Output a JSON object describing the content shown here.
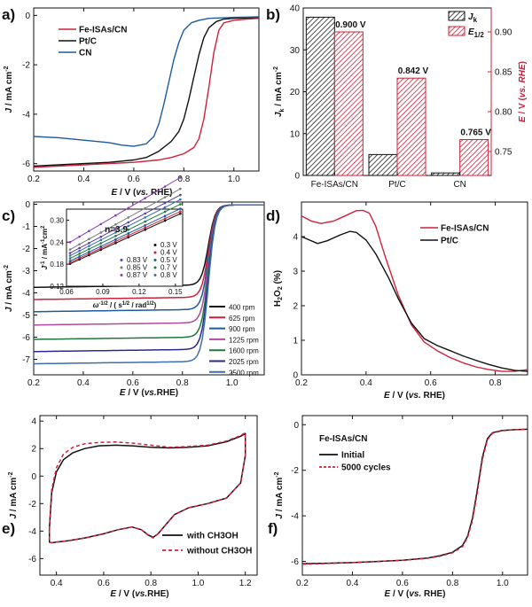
{
  "colors": {
    "red": "#d0203a",
    "blue": "#1f5a9b",
    "black": "#111111"
  },
  "chart_data": [
    {
      "panel": "a)",
      "type": "line",
      "xlabel": "E / V (vs. RHE)",
      "ylabel": "J / mA cm-2",
      "xlim": [
        0.2,
        1.1
      ],
      "ylim": [
        -6.3,
        0.3
      ],
      "xticks": [
        0.2,
        0.4,
        0.6,
        0.8,
        1.0
      ],
      "yticks": [
        0,
        -2,
        -4,
        -6
      ],
      "legend_position": "top-left",
      "series": [
        {
          "name": "Fe-ISAs/CN",
          "color": "#d0203a",
          "legend": true,
          "x": [
            0.2,
            0.3,
            0.4,
            0.5,
            0.6,
            0.7,
            0.75,
            0.8,
            0.84,
            0.86,
            0.88,
            0.9,
            0.92,
            0.94,
            0.96,
            1.0,
            1.05,
            1.1
          ],
          "y": [
            -6.15,
            -6.1,
            -6.05,
            -6.0,
            -5.95,
            -5.85,
            -5.75,
            -5.6,
            -5.35,
            -5.0,
            -4.2,
            -2.9,
            -1.5,
            -0.6,
            -0.3,
            -0.2,
            -0.15,
            -0.12
          ]
        },
        {
          "name": "Pt/C",
          "color": "#111111",
          "legend": true,
          "x": [
            0.2,
            0.3,
            0.4,
            0.5,
            0.6,
            0.65,
            0.7,
            0.75,
            0.78,
            0.8,
            0.82,
            0.84,
            0.86,
            0.88,
            0.9,
            0.93,
            0.96,
            1.0,
            1.05,
            1.1
          ],
          "y": [
            -6.1,
            -6.05,
            -6.0,
            -5.95,
            -5.85,
            -5.75,
            -5.5,
            -5.1,
            -4.7,
            -4.2,
            -3.4,
            -2.5,
            -1.6,
            -0.9,
            -0.5,
            -0.25,
            -0.15,
            -0.12,
            -0.1,
            -0.08
          ]
        },
        {
          "name": "CN",
          "color": "#1f5a9b",
          "legend": true,
          "x": [
            0.2,
            0.3,
            0.4,
            0.5,
            0.55,
            0.6,
            0.65,
            0.68,
            0.7,
            0.72,
            0.74,
            0.76,
            0.78,
            0.8,
            0.83,
            0.86,
            0.9,
            0.95,
            1.0,
            1.05,
            1.1
          ],
          "y": [
            -4.9,
            -4.95,
            -5.05,
            -5.15,
            -5.25,
            -5.3,
            -5.2,
            -4.9,
            -4.4,
            -3.6,
            -2.7,
            -1.8,
            -1.1,
            -0.6,
            -0.3,
            -0.2,
            -0.12,
            -0.1,
            -0.08,
            -0.07,
            -0.06
          ]
        }
      ]
    },
    {
      "panel": "b)",
      "type": "bar",
      "categories": [
        "Fe-ISAs/CN",
        "Pt/C",
        "CN"
      ],
      "ylabel": "Jk / mA cm-2",
      "y2label": "E / V (vs. RHE)",
      "ylim": [
        0,
        40
      ],
      "yticks": [
        0,
        10,
        20,
        30,
        40
      ],
      "y2lim": [
        0.72,
        0.93
      ],
      "y2ticks": [
        0.75,
        0.8,
        0.85,
        0.9
      ],
      "legend_position": "top-right",
      "series": [
        {
          "name": "Jk",
          "axis": "left",
          "color": "#111111",
          "values": [
            37.8,
            5.0,
            0.6
          ]
        },
        {
          "name": "E1/2",
          "axis": "right",
          "color": "#d0203a",
          "values": [
            0.9,
            0.842,
            0.765
          ],
          "labels": [
            "0.900 V",
            "0.842 V",
            "0.765 V"
          ]
        }
      ]
    },
    {
      "panel": "c)",
      "type": "line",
      "xlabel": "E / V (vs.RHE)",
      "ylabel": "J / mA cm-2",
      "xlim": [
        0.2,
        1.13
      ],
      "ylim": [
        -7.7,
        0.1
      ],
      "xticks": [
        0.2,
        0.4,
        0.6,
        0.8,
        1.0
      ],
      "yticks": [
        0,
        -1,
        -2,
        -3,
        -4,
        -5,
        -6,
        -7
      ],
      "legend_position": "bottom-right",
      "series": [
        {
          "name": "400 rpm",
          "color": "#111111",
          "plateau": -3.75
        },
        {
          "name": "625 rpm",
          "color": "#d0203a",
          "plateau": -4.3
        },
        {
          "name": "900 rpm",
          "color": "#1f5a9b",
          "plateau": -4.85
        },
        {
          "name": "1225 rpm",
          "color": "#b04a9c",
          "plateau": -5.45
        },
        {
          "name": "1600 rpm",
          "color": "#1e7a3a",
          "plateau": -6.1
        },
        {
          "name": "2025 rpm",
          "color": "#2a2a8a",
          "plateau": -6.65
        },
        {
          "name": "2500 rpm",
          "color": "#3c6fb0",
          "plateau": -7.2
        }
      ],
      "inset": {
        "type": "scatter",
        "annotation": "n=3.9",
        "xlabel": "ω-1/2 / (s1/2 / rad1/2)",
        "ylabel": "J-1 / mA-1 cm2",
        "xlim": [
          0.06,
          0.156
        ],
        "ylim": [
          0.12,
          0.33
        ],
        "xticks": [
          "0.06",
          "0.09",
          "0.12",
          "0.15"
        ],
        "yticks": [
          "0.12",
          "0.18",
          "0.24",
          "0.30"
        ],
        "x": [
          0.063,
          0.0707,
          0.0786,
          0.0884,
          0.1006,
          0.1111,
          0.125,
          0.1414,
          0.154
        ],
        "series": [
          {
            "name": "0.3 V",
            "color": "#111111",
            "b": 0.0868,
            "k": 1.497
          },
          {
            "name": "0.4 V",
            "color": "#d0203a",
            "b": 0.0886,
            "k": 1.526
          },
          {
            "name": "0.5 V",
            "color": "#1f5a9b",
            "b": 0.0905,
            "k": 1.562
          },
          {
            "name": "0.7 V",
            "color": "#1e7a3a",
            "b": 0.0939,
            "k": 1.619
          },
          {
            "name": "0.8 V",
            "color": "#3c6fb0",
            "b": 0.0976,
            "k": 1.678
          },
          {
            "name": "0.83 V",
            "color": "#5a3ea0",
            "b": 0.1011,
            "k": 1.736
          },
          {
            "name": "0.85 V",
            "color": "#7a7a7a",
            "b": 0.1059,
            "k": 1.813
          },
          {
            "name": "0.87 V",
            "color": "#8a3ab0",
            "b": 0.1185,
            "k": 1.931
          }
        ]
      }
    },
    {
      "panel": "d)",
      "type": "line",
      "xlabel": "E / V (vs. RHE)",
      "ylabel": "H2O2 (%)",
      "xlim": [
        0.2,
        0.9
      ],
      "ylim": [
        0,
        5.0
      ],
      "xticks": [
        0.2,
        0.4,
        0.6,
        0.8
      ],
      "yticks": [
        0,
        1,
        2,
        3,
        4
      ],
      "legend_position": "top-right",
      "series": [
        {
          "name": "Fe-ISAs/CN",
          "color": "#d0203a",
          "x": [
            0.2,
            0.23,
            0.26,
            0.3,
            0.34,
            0.37,
            0.39,
            0.41,
            0.43,
            0.46,
            0.5,
            0.54,
            0.58,
            0.62,
            0.66,
            0.7,
            0.74,
            0.78,
            0.82,
            0.86,
            0.9
          ],
          "y": [
            4.6,
            4.45,
            4.38,
            4.45,
            4.62,
            4.75,
            4.76,
            4.68,
            4.3,
            3.4,
            2.3,
            1.45,
            0.95,
            0.7,
            0.5,
            0.35,
            0.23,
            0.15,
            0.1,
            0.1,
            0.15
          ]
        },
        {
          "name": "Pt/C",
          "color": "#111111",
          "x": [
            0.2,
            0.22,
            0.25,
            0.28,
            0.32,
            0.35,
            0.37,
            0.4,
            0.43,
            0.47,
            0.5,
            0.54,
            0.58,
            0.62,
            0.66,
            0.7,
            0.74,
            0.78,
            0.82,
            0.86,
            0.9
          ],
          "y": [
            4.0,
            3.92,
            3.8,
            3.88,
            4.05,
            4.15,
            4.12,
            3.9,
            3.5,
            2.8,
            2.2,
            1.5,
            1.05,
            0.85,
            0.7,
            0.55,
            0.42,
            0.3,
            0.2,
            0.13,
            0.1
          ]
        }
      ]
    },
    {
      "panel": "e)",
      "type": "line",
      "xlabel": "E / V (vs.RHE)",
      "ylabel": "J / mA cm-2",
      "xlim": [
        0.33,
        1.25
      ],
      "ylim": [
        -7.2,
        4.4
      ],
      "xticks": [
        0.4,
        0.6,
        0.8,
        1.0,
        1.2
      ],
      "yticks": [
        4,
        2,
        0,
        -2,
        -4,
        -6
      ],
      "legend_position": "bottom-right",
      "series": [
        {
          "name": "with CH3OH",
          "color": "#111111",
          "dash": false,
          "x": [
            0.37,
            0.38,
            0.4,
            0.43,
            0.47,
            0.52,
            0.58,
            0.65,
            0.72,
            0.8,
            0.88,
            0.96,
            1.04,
            1.12,
            1.18,
            1.2,
            1.2,
            1.18,
            1.12,
            1.04,
            0.96,
            0.9,
            0.86,
            0.83,
            0.81,
            0.79,
            0.76,
            0.72,
            0.66,
            0.6,
            0.52,
            0.45,
            0.4,
            0.38,
            0.37,
            0.37
          ],
          "y": [
            -3.8,
            -1.2,
            0.3,
            1.2,
            1.7,
            2.0,
            2.2,
            2.25,
            2.2,
            2.1,
            2.05,
            2.1,
            2.2,
            2.5,
            2.9,
            3.1,
            1.5,
            -0.5,
            -1.6,
            -2.0,
            -2.3,
            -2.8,
            -3.6,
            -4.2,
            -4.45,
            -4.3,
            -3.9,
            -3.7,
            -3.9,
            -4.2,
            -4.5,
            -4.7,
            -4.8,
            -4.85,
            -4.8,
            -3.8
          ]
        },
        {
          "name": "without CH3OH",
          "color": "#d0203a",
          "dash": true,
          "x": [
            0.37,
            0.38,
            0.4,
            0.43,
            0.47,
            0.52,
            0.58,
            0.65,
            0.72,
            0.8,
            0.88,
            0.96,
            1.04,
            1.12,
            1.18,
            1.2,
            1.2,
            1.18,
            1.12,
            1.04,
            0.96,
            0.9,
            0.86,
            0.83,
            0.81,
            0.79,
            0.76,
            0.72,
            0.66,
            0.6,
            0.52,
            0.45,
            0.4,
            0.38,
            0.37,
            0.37
          ],
          "y": [
            -3.9,
            -1.0,
            0.6,
            1.6,
            2.1,
            2.35,
            2.45,
            2.48,
            2.4,
            2.25,
            2.1,
            2.15,
            2.25,
            2.55,
            2.95,
            3.15,
            1.5,
            -0.5,
            -1.6,
            -2.0,
            -2.3,
            -2.8,
            -3.6,
            -4.2,
            -4.5,
            -4.3,
            -3.9,
            -3.7,
            -3.9,
            -4.2,
            -4.5,
            -4.7,
            -4.8,
            -4.85,
            -4.8,
            -3.9
          ]
        }
      ]
    },
    {
      "panel": "f)",
      "type": "line",
      "title": "Fe-ISAs/CN",
      "xlabel": "E / V (vs. RHE)",
      "ylabel": "J / mA cm-2",
      "xlim": [
        0.2,
        1.1
      ],
      "ylim": [
        -6.6,
        0.4
      ],
      "xticks": [
        0.2,
        0.4,
        0.6,
        0.8,
        1.0
      ],
      "yticks": [
        0,
        -2,
        -4,
        -6
      ],
      "legend_position": "top-left",
      "series": [
        {
          "name": "Initial",
          "color": "#111111",
          "dash": false,
          "x": [
            0.2,
            0.3,
            0.4,
            0.5,
            0.6,
            0.7,
            0.75,
            0.8,
            0.84,
            0.86,
            0.88,
            0.9,
            0.92,
            0.94,
            0.96,
            1.0,
            1.05,
            1.1
          ],
          "y": [
            -6.1,
            -6.08,
            -6.05,
            -6.0,
            -5.95,
            -5.85,
            -5.75,
            -5.6,
            -5.3,
            -4.9,
            -4.1,
            -2.8,
            -1.4,
            -0.6,
            -0.35,
            -0.25,
            -0.22,
            -0.2
          ]
        },
        {
          "name": "5000 cycles",
          "color": "#d0203a",
          "dash": true,
          "x": [
            0.2,
            0.3,
            0.4,
            0.5,
            0.6,
            0.7,
            0.75,
            0.8,
            0.84,
            0.86,
            0.88,
            0.9,
            0.92,
            0.94,
            0.96,
            1.0,
            1.05,
            1.1
          ],
          "y": [
            -6.12,
            -6.09,
            -6.05,
            -6.0,
            -5.95,
            -5.86,
            -5.77,
            -5.62,
            -5.35,
            -4.95,
            -4.2,
            -2.9,
            -1.5,
            -0.65,
            -0.37,
            -0.26,
            -0.22,
            -0.2
          ]
        }
      ]
    }
  ]
}
